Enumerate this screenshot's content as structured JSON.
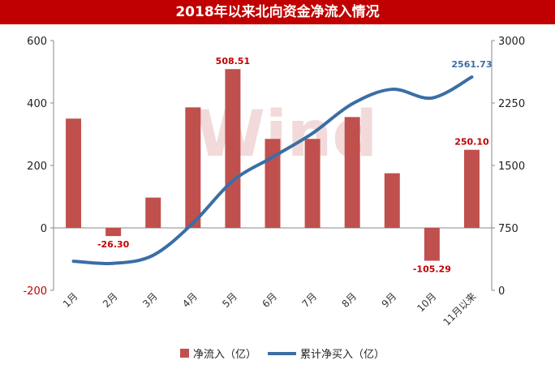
{
  "chart_data": {
    "type": "bar+line",
    "title": "2018年以来北向资金净流入情况",
    "categories": [
      "1月",
      "2月",
      "3月",
      "4月",
      "5月",
      "6月",
      "7月",
      "8月",
      "9月",
      "10月",
      "11月以来"
    ],
    "series": [
      {
        "name": "净流入（亿）",
        "type": "bar",
        "axis": "left",
        "color": "#c0504d",
        "values": [
          350,
          -26.3,
          97,
          386,
          508.51,
          285,
          285,
          355,
          175,
          -105.29,
          250.1
        ]
      },
      {
        "name": "累计净买入（亿）",
        "type": "line",
        "axis": "right",
        "color": "#3a6ea5",
        "values": [
          350,
          324,
          421,
          807,
          1315,
          1600,
          1885,
          2240,
          2415,
          2310,
          2561.73
        ]
      }
    ],
    "data_labels": [
      {
        "series": 0,
        "index": 1,
        "text": "-26.30"
      },
      {
        "series": 0,
        "index": 4,
        "text": "508.51"
      },
      {
        "series": 0,
        "index": 9,
        "text": "-105.29"
      },
      {
        "series": 0,
        "index": 10,
        "text": "250.10"
      },
      {
        "series": 1,
        "index": 10,
        "text": "2561.73"
      }
    ],
    "y_left": {
      "min": -200,
      "max": 600,
      "ticks": [
        "600",
        "400",
        "200",
        "0",
        "-200"
      ],
      "tick_values": [
        600,
        400,
        200,
        0,
        -200
      ]
    },
    "y_right": {
      "min": 0,
      "max": 3000,
      "ticks": [
        "3000",
        "2250",
        "1500",
        "750",
        "0"
      ],
      "tick_values": [
        3000,
        2250,
        1500,
        750,
        0
      ]
    },
    "grid": false,
    "legend_position": "bottom",
    "watermark": "Wind",
    "colors": {
      "title_bg": "#c00000",
      "negative_tick": "#c00000",
      "bar": "#c0504d",
      "line": "#3a6ea5"
    }
  }
}
